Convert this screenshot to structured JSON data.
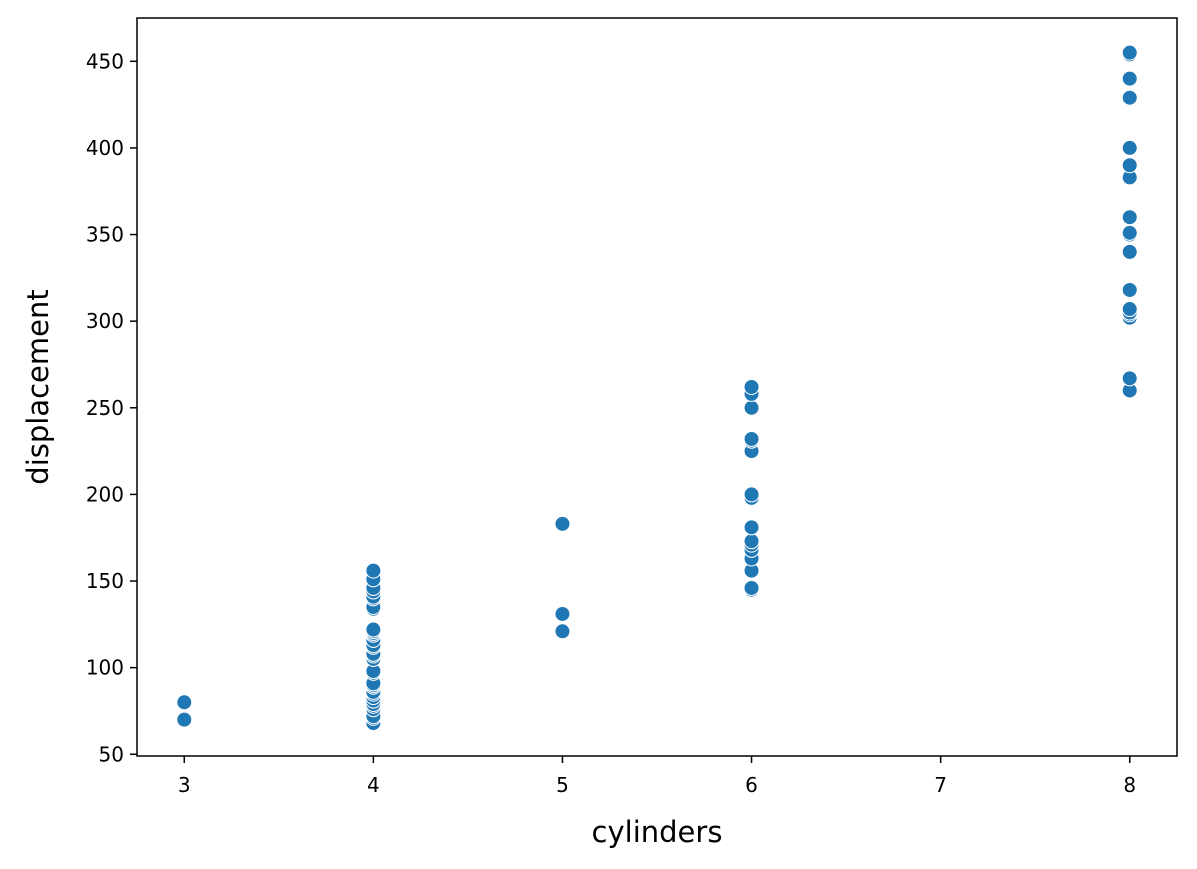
{
  "chart_data": {
    "type": "scatter",
    "title": "",
    "xlabel": "cylinders",
    "ylabel": "displacement",
    "xlim": [
      2.75,
      8.25
    ],
    "ylim": [
      49,
      475
    ],
    "x_ticks": [
      3,
      4,
      5,
      6,
      7,
      8
    ],
    "y_ticks": [
      50,
      100,
      150,
      200,
      250,
      300,
      350,
      400,
      450
    ],
    "grid": false,
    "legend": "none",
    "marker_color": "#1f77b4",
    "marker_edge_color": "#ffffff",
    "points": [
      {
        "x": 3,
        "y": 70
      },
      {
        "x": 3,
        "y": 80
      },
      {
        "x": 4,
        "y": 68
      },
      {
        "x": 4,
        "y": 71
      },
      {
        "x": 4,
        "y": 72
      },
      {
        "x": 4,
        "y": 76
      },
      {
        "x": 4,
        "y": 78
      },
      {
        "x": 4,
        "y": 79
      },
      {
        "x": 4,
        "y": 81
      },
      {
        "x": 4,
        "y": 83
      },
      {
        "x": 4,
        "y": 85
      },
      {
        "x": 4,
        "y": 86
      },
      {
        "x": 4,
        "y": 89
      },
      {
        "x": 4,
        "y": 90
      },
      {
        "x": 4,
        "y": 91
      },
      {
        "x": 4,
        "y": 97
      },
      {
        "x": 4,
        "y": 98
      },
      {
        "x": 4,
        "y": 105
      },
      {
        "x": 4,
        "y": 107
      },
      {
        "x": 4,
        "y": 108
      },
      {
        "x": 4,
        "y": 112
      },
      {
        "x": 4,
        "y": 113
      },
      {
        "x": 4,
        "y": 116
      },
      {
        "x": 4,
        "y": 119
      },
      {
        "x": 4,
        "y": 120
      },
      {
        "x": 4,
        "y": 121
      },
      {
        "x": 4,
        "y": 122
      },
      {
        "x": 4,
        "y": 134
      },
      {
        "x": 4,
        "y": 135
      },
      {
        "x": 4,
        "y": 140
      },
      {
        "x": 4,
        "y": 141
      },
      {
        "x": 4,
        "y": 144
      },
      {
        "x": 4,
        "y": 146
      },
      {
        "x": 4,
        "y": 151
      },
      {
        "x": 4,
        "y": 156
      },
      {
        "x": 5,
        "y": 121
      },
      {
        "x": 5,
        "y": 131
      },
      {
        "x": 5,
        "y": 183
      },
      {
        "x": 6,
        "y": 145
      },
      {
        "x": 6,
        "y": 146
      },
      {
        "x": 6,
        "y": 156
      },
      {
        "x": 6,
        "y": 163
      },
      {
        "x": 6,
        "y": 168
      },
      {
        "x": 6,
        "y": 171
      },
      {
        "x": 6,
        "y": 173
      },
      {
        "x": 6,
        "y": 181
      },
      {
        "x": 6,
        "y": 198
      },
      {
        "x": 6,
        "y": 200
      },
      {
        "x": 6,
        "y": 225
      },
      {
        "x": 6,
        "y": 231
      },
      {
        "x": 6,
        "y": 232
      },
      {
        "x": 6,
        "y": 250
      },
      {
        "x": 6,
        "y": 258
      },
      {
        "x": 6,
        "y": 262
      },
      {
        "x": 8,
        "y": 260
      },
      {
        "x": 8,
        "y": 267
      },
      {
        "x": 8,
        "y": 302
      },
      {
        "x": 8,
        "y": 304
      },
      {
        "x": 8,
        "y": 305
      },
      {
        "x": 8,
        "y": 307
      },
      {
        "x": 8,
        "y": 318
      },
      {
        "x": 8,
        "y": 340
      },
      {
        "x": 8,
        "y": 350
      },
      {
        "x": 8,
        "y": 351
      },
      {
        "x": 8,
        "y": 360
      },
      {
        "x": 8,
        "y": 383
      },
      {
        "x": 8,
        "y": 390
      },
      {
        "x": 8,
        "y": 400
      },
      {
        "x": 8,
        "y": 429
      },
      {
        "x": 8,
        "y": 440
      },
      {
        "x": 8,
        "y": 454
      },
      {
        "x": 8,
        "y": 455
      }
    ]
  }
}
